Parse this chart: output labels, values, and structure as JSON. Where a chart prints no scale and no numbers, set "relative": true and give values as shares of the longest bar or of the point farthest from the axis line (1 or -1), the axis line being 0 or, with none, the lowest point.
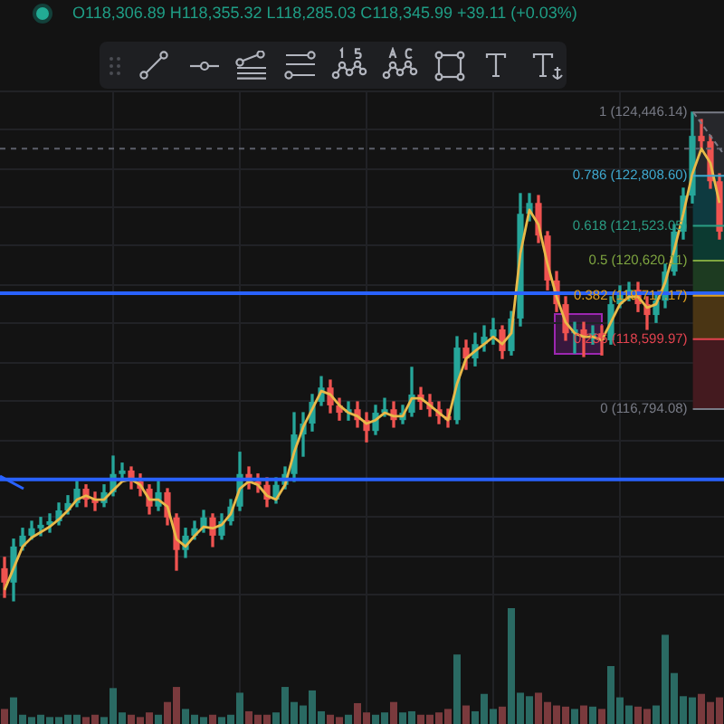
{
  "chart_data": [
    {
      "type": "candlestick",
      "subtitle": "O118,306.89 H118,355.32 L118,285.03 C118,345.99 +39.11 (+0.03%)",
      "categories": [
        null,
        null,
        null,
        null,
        null,
        null,
        null,
        null,
        null,
        null,
        null,
        null,
        null,
        null,
        null,
        null,
        null,
        null,
        null,
        null,
        null,
        null,
        null,
        null,
        null,
        null,
        null,
        null,
        null,
        null,
        null,
        null,
        null,
        null,
        null,
        null,
        null,
        null,
        null,
        null,
        null,
        null,
        null,
        null,
        null,
        null,
        null,
        null,
        null,
        null,
        null,
        null,
        null,
        null,
        null,
        null,
        null,
        null,
        null,
        null,
        null,
        null,
        null,
        null,
        null,
        null,
        null,
        null,
        null,
        null,
        null,
        null,
        null,
        null,
        null,
        null,
        null,
        null,
        null,
        null
      ],
      "ohlc": [
        [
          112690,
          112970,
          111940,
          112320
        ],
        [
          112320,
          113440,
          111850,
          113250
        ],
        [
          113250,
          113720,
          113160,
          113530
        ],
        [
          113530,
          113900,
          113440,
          113720
        ],
        [
          113720,
          114000,
          113530,
          113810
        ],
        [
          113810,
          114090,
          113620,
          113900
        ],
        [
          113900,
          114370,
          113810,
          114180
        ],
        [
          114180,
          114560,
          114090,
          114370
        ],
        [
          114370,
          114930,
          114280,
          114740
        ],
        [
          114740,
          114840,
          114280,
          114460
        ],
        [
          114460,
          114650,
          114180,
          114370
        ],
        [
          114370,
          114840,
          114280,
          114650
        ],
        [
          114650,
          115580,
          114560,
          115120
        ],
        [
          115120,
          115400,
          114930,
          115210
        ],
        [
          115210,
          115300,
          114740,
          114930
        ],
        [
          114930,
          115120,
          114560,
          114740
        ],
        [
          114740,
          114840,
          114090,
          114280
        ],
        [
          114280,
          114930,
          114180,
          114650
        ],
        [
          114650,
          114740,
          113810,
          114000
        ],
        [
          114000,
          114090,
          112640,
          113160
        ],
        [
          113160,
          113720,
          112970,
          113530
        ],
        [
          113530,
          113900,
          113440,
          113720
        ],
        [
          113720,
          114180,
          113620,
          114000
        ],
        [
          114000,
          114090,
          113250,
          113530
        ],
        [
          113530,
          114090,
          113440,
          113900
        ],
        [
          113900,
          114460,
          113810,
          114280
        ],
        [
          114280,
          115680,
          114180,
          115120
        ],
        [
          115120,
          115300,
          114740,
          114930
        ],
        [
          114930,
          115120,
          114650,
          114840
        ],
        [
          114840,
          115020,
          114280,
          114460
        ],
        [
          114460,
          115020,
          114370,
          114840
        ],
        [
          114840,
          115300,
          114740,
          115120
        ],
        [
          115120,
          116700,
          114930,
          116140
        ],
        [
          116140,
          116700,
          115580,
          116420
        ],
        [
          116420,
          117170,
          116230,
          116980
        ],
        [
          116980,
          117630,
          116890,
          117350
        ],
        [
          117350,
          117540,
          116700,
          116890
        ],
        [
          116890,
          117070,
          116510,
          116700
        ],
        [
          116700,
          116980,
          116510,
          116790
        ],
        [
          116790,
          116980,
          116330,
          116510
        ],
        [
          116510,
          116700,
          115950,
          116230
        ],
        [
          116230,
          116890,
          116140,
          116700
        ],
        [
          116700,
          117070,
          116610,
          116790
        ],
        [
          116790,
          116980,
          116330,
          116510
        ],
        [
          116510,
          116890,
          116420,
          116700
        ],
        [
          116700,
          117870,
          116610,
          117170
        ],
        [
          117170,
          117350,
          116790,
          116980
        ],
        [
          116980,
          117170,
          116610,
          116790
        ],
        [
          116790,
          116980,
          116420,
          116610
        ],
        [
          116610,
          116790,
          116330,
          116510
        ],
        [
          116510,
          118660,
          116420,
          118380
        ],
        [
          118380,
          118570,
          117820,
          118100
        ],
        [
          118100,
          118750,
          117910,
          118470
        ],
        [
          118470,
          118940,
          118290,
          118660
        ],
        [
          118660,
          119130,
          118470,
          118850
        ],
        [
          118850,
          118940,
          118100,
          118290
        ],
        [
          118290,
          119310,
          118190,
          119130
        ],
        [
          119130,
          122350,
          118940,
          121830
        ],
        [
          121830,
          122350,
          121650,
          122110
        ],
        [
          122110,
          122300,
          121090,
          121270
        ],
        [
          121270,
          121370,
          119870,
          120110
        ],
        [
          120110,
          120340,
          119310,
          119500
        ],
        [
          119500,
          119690,
          118570,
          118750
        ],
        [
          118750,
          119030,
          118240,
          118850
        ],
        [
          118850,
          119030,
          118150,
          118660
        ],
        [
          118660,
          118940,
          118470,
          118750
        ],
        [
          118750,
          118940,
          118190,
          118570
        ],
        [
          118570,
          119690,
          118470,
          119500
        ],
        [
          119500,
          119970,
          119410,
          119780
        ],
        [
          119780,
          120060,
          119590,
          119870
        ],
        [
          119870,
          120060,
          119310,
          119500
        ],
        [
          119500,
          119690,
          118850,
          119220
        ],
        [
          119220,
          119780,
          119030,
          119590
        ],
        [
          119590,
          120530,
          119410,
          120340
        ],
        [
          120340,
          121550,
          120250,
          121370
        ],
        [
          121370,
          122490,
          121180,
          122300
        ],
        [
          122300,
          124450,
          122110,
          123840
        ],
        [
          123840,
          124260,
          123510,
          123700
        ],
        [
          123700,
          123840,
          122490,
          122670
        ],
        [
          122670,
          122860,
          121180,
          121370
        ]
      ],
      "colors": [
        "#ef5350",
        "#26a69a",
        "#26a69a",
        "#26a69a",
        "#26a69a",
        "#26a69a",
        "#26a69a",
        "#26a69a",
        "#26a69a",
        "#ef5350",
        "#ef5350",
        "#26a69a",
        "#26a69a",
        "#26a69a",
        "#ef5350",
        "#ef5350",
        "#ef5350",
        "#26a69a",
        "#ef5350",
        "#ef5350",
        "#26a69a",
        "#26a69a",
        "#26a69a",
        "#ef5350",
        "#26a69a",
        "#26a69a",
        "#26a69a",
        "#ef5350",
        "#ef5350",
        "#ef5350",
        "#26a69a",
        "#26a69a",
        "#26a69a",
        "#26a69a",
        "#26a69a",
        "#26a69a",
        "#ef5350",
        "#ef5350",
        "#26a69a",
        "#ef5350",
        "#ef5350",
        "#26a69a",
        "#26a69a",
        "#ef5350",
        "#26a69a",
        "#26a69a",
        "#ef5350",
        "#ef5350",
        "#ef5350",
        "#ef5350",
        "#26a69a",
        "#ef5350",
        "#26a69a",
        "#26a69a",
        "#26a69a",
        "#ef5350",
        "#26a69a",
        "#26a69a",
        "#26a69a",
        "#ef5350",
        "#ef5350",
        "#ef5350",
        "#ef5350",
        "#26a69a",
        "#ef5350",
        "#26a69a",
        "#ef5350",
        "#26a69a",
        "#26a69a",
        "#26a69a",
        "#ef5350",
        "#ef5350",
        "#26a69a",
        "#26a69a",
        "#26a69a",
        "#26a69a",
        "#26a69a",
        "#ef5350",
        "#ef5350",
        "#ef5350"
      ],
      "series": [
        {
          "type": "line",
          "color": "#e9b949",
          "values": [
            112130,
            112690,
            113250,
            113480,
            113620,
            113760,
            113950,
            114180,
            114460,
            114560,
            114460,
            114460,
            114700,
            114930,
            114980,
            114840,
            114460,
            114460,
            114280,
            113440,
            113250,
            113530,
            113760,
            113720,
            113810,
            114090,
            114740,
            114930,
            114840,
            114560,
            114460,
            114840,
            115680,
            116330,
            116790,
            117260,
            117170,
            116890,
            116700,
            116610,
            116420,
            116510,
            116700,
            116610,
            116610,
            117070,
            117070,
            116890,
            116700,
            116510,
            117450,
            118100,
            118290,
            118470,
            118660,
            118470,
            118750,
            120810,
            121930,
            121550,
            120530,
            119690,
            119030,
            118750,
            118660,
            118660,
            118570,
            119030,
            119500,
            119690,
            119690,
            119410,
            119500,
            120060,
            120900,
            121830,
            122860,
            123510,
            123140,
            122110
          ]
        }
      ],
      "ylim": [
        111660,
        125010
      ],
      "yticks": [
        {
          "value": 112000,
          "label": null
        },
        {
          "value": 113000,
          "label": null
        },
        {
          "value": 114000,
          "label": null
        },
        {
          "value": 115000,
          "label": null
        },
        {
          "value": 116000,
          "label": null
        },
        {
          "value": 117000,
          "label": null
        },
        {
          "value": 118000,
          "label": null
        },
        {
          "value": 119000,
          "label": null
        },
        {
          "value": 120000,
          "label": null
        },
        {
          "value": 121000,
          "label": null
        },
        {
          "value": 122000,
          "label": null
        },
        {
          "value": 123000,
          "label": null
        },
        {
          "value": 124000,
          "label": null
        },
        {
          "value": 125000,
          "label": null
        }
      ],
      "tick_labels": false,
      "grid": true,
      "ref_lines": [
        {
          "axis": "y",
          "value": 119780,
          "color": "#2962ff"
        },
        {
          "axis": "y",
          "value": 114980,
          "color": "#2962ff"
        },
        {
          "axis": "y",
          "value": 123510,
          "color": "#5d606b",
          "line_style": "dashed"
        },
        {
          "axis": "y",
          "value": 124446.14,
          "label": "1 (124,446.14)",
          "color": "#787b86"
        },
        {
          "axis": "y",
          "value": 122808.6,
          "label": "0.786 (122,808.60)",
          "color": "#3fa9cf"
        },
        {
          "axis": "y",
          "value": 121523.05,
          "label": "0.618 (121,523.05)",
          "color": "#2a9d84"
        },
        {
          "axis": "y",
          "value": 120620.11,
          "label": "0.5 (120,620.11)",
          "color": "#7fa640"
        },
        {
          "axis": "y",
          "value": 119717.17,
          "label": "0.382 (119,717.17)",
          "color": "#e0a020"
        },
        {
          "axis": "y",
          "value": 118599.97,
          "label": "0.236 (118,599.97)",
          "color": "#e2434f"
        },
        {
          "axis": "y",
          "value": 116794.08,
          "label": "0 (116,794.08)",
          "color": "#787b86"
        }
      ],
      "bands": [
        {
          "axis": "y",
          "from": 122808.6,
          "to": 124446.14,
          "color": "#26272b"
        },
        {
          "axis": "y",
          "from": 121523.05,
          "to": 122808.6,
          "color": "#0e3a40"
        },
        {
          "axis": "y",
          "from": 120620.11,
          "to": 121523.05,
          "color": "#0c3a31"
        },
        {
          "axis": "y",
          "from": 119717.17,
          "to": 120620.11,
          "color": "#1d3b21"
        },
        {
          "axis": "y",
          "from": 118599.97,
          "to": 119717.17,
          "color": "#4a3514"
        },
        {
          "axis": "y",
          "from": 116794.08,
          "to": 118599.97,
          "color": "#441a1f"
        }
      ]
    },
    {
      "type": "bar",
      "relative": true,
      "categories": [
        null,
        null,
        null,
        null,
        null,
        null,
        null,
        null,
        null,
        null,
        null,
        null,
        null,
        null,
        null,
        null,
        null,
        null,
        null,
        null,
        null,
        null,
        null,
        null,
        null,
        null,
        null,
        null,
        null,
        null,
        null,
        null,
        null,
        null,
        null,
        null,
        null,
        null,
        null,
        null,
        null,
        null,
        null,
        null,
        null,
        null,
        null,
        null,
        null,
        null,
        null,
        null,
        null,
        null,
        null,
        null,
        null,
        null,
        null,
        null,
        null,
        null,
        null,
        null,
        null,
        null,
        null,
        null,
        null,
        null,
        null,
        null,
        null,
        null,
        null,
        null,
        null,
        null,
        null,
        null
      ],
      "values": [
        0.13,
        0.23,
        0.08,
        0.06,
        0.08,
        0.06,
        0.06,
        0.08,
        0.08,
        0.06,
        0.08,
        0.06,
        0.31,
        0.1,
        0.08,
        0.06,
        0.1,
        0.08,
        0.19,
        0.32,
        0.13,
        0.08,
        0.06,
        0.08,
        0.06,
        0.08,
        0.27,
        0.11,
        0.08,
        0.08,
        0.1,
        0.32,
        0.19,
        0.16,
        0.29,
        0.11,
        0.08,
        0.06,
        0.08,
        0.18,
        0.1,
        0.08,
        0.1,
        0.19,
        0.1,
        0.11,
        0.08,
        0.08,
        0.1,
        0.13,
        0.6,
        0.16,
        0.11,
        0.26,
        0.13,
        0.15,
        1,
        0.27,
        0.24,
        0.27,
        0.19,
        0.16,
        0.15,
        0.13,
        0.16,
        0.15,
        0.13,
        0.5,
        0.23,
        0.16,
        0.15,
        0.13,
        0.16,
        0.77,
        0.44,
        0.24,
        0.23,
        0.26,
        0.19,
        0.23
      ],
      "colors": [
        "#7a3a3d",
        "#2a6a63",
        "#2a6a63",
        "#2a6a63",
        "#2a6a63",
        "#2a6a63",
        "#2a6a63",
        "#2a6a63",
        "#2a6a63",
        "#7a3a3d",
        "#7a3a3d",
        "#2a6a63",
        "#2a6a63",
        "#2a6a63",
        "#7a3a3d",
        "#7a3a3d",
        "#7a3a3d",
        "#2a6a63",
        "#7a3a3d",
        "#7a3a3d",
        "#2a6a63",
        "#2a6a63",
        "#2a6a63",
        "#7a3a3d",
        "#2a6a63",
        "#2a6a63",
        "#2a6a63",
        "#7a3a3d",
        "#7a3a3d",
        "#7a3a3d",
        "#2a6a63",
        "#2a6a63",
        "#2a6a63",
        "#2a6a63",
        "#2a6a63",
        "#2a6a63",
        "#7a3a3d",
        "#7a3a3d",
        "#2a6a63",
        "#7a3a3d",
        "#7a3a3d",
        "#2a6a63",
        "#2a6a63",
        "#7a3a3d",
        "#2a6a63",
        "#2a6a63",
        "#7a3a3d",
        "#7a3a3d",
        "#7a3a3d",
        "#7a3a3d",
        "#2a6a63",
        "#7a3a3d",
        "#2a6a63",
        "#2a6a63",
        "#2a6a63",
        "#7a3a3d",
        "#2a6a63",
        "#2a6a63",
        "#2a6a63",
        "#7a3a3d",
        "#7a3a3d",
        "#7a3a3d",
        "#7a3a3d",
        "#2a6a63",
        "#7a3a3d",
        "#2a6a63",
        "#7a3a3d",
        "#2a6a63",
        "#2a6a63",
        "#2a6a63",
        "#7a3a3d",
        "#7a3a3d",
        "#2a6a63",
        "#2a6a63",
        "#2a6a63",
        "#2a6a63",
        "#2a6a63",
        "#7a3a3d",
        "#7a3a3d",
        "#7a3a3d"
      ],
      "grid": "x",
      "tick_labels": false
    }
  ]
}
